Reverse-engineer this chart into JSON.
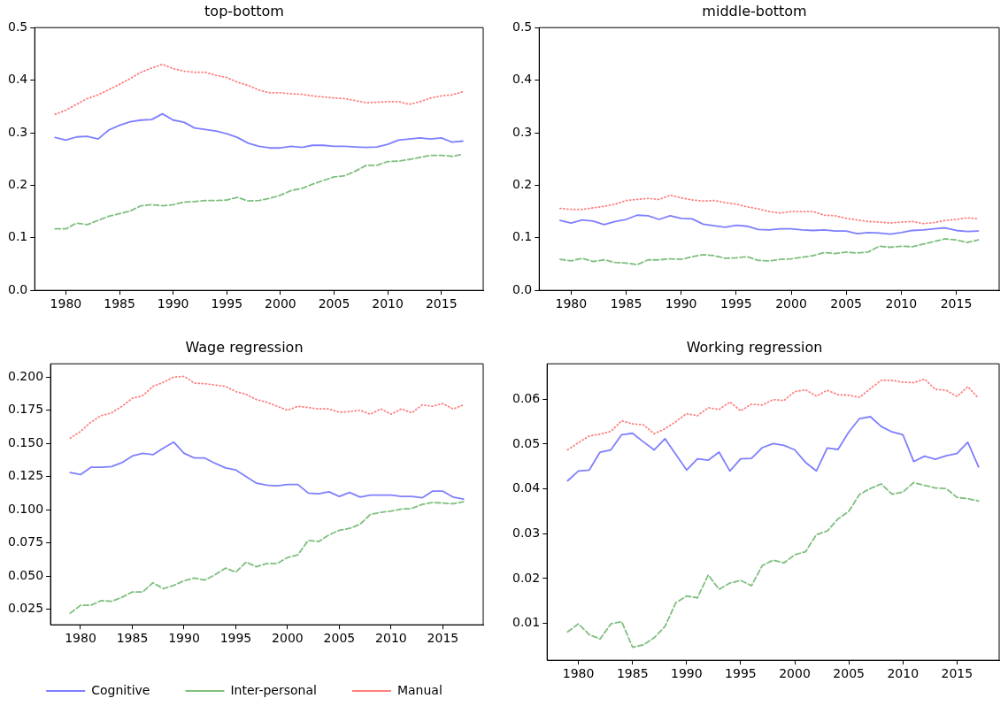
{
  "chart_data": [
    {
      "type": "line",
      "title": "top-bottom",
      "x": [
        1979,
        1980,
        1981,
        1982,
        1983,
        1984,
        1985,
        1986,
        1987,
        1988,
        1989,
        1990,
        1991,
        1992,
        1993,
        1994,
        1995,
        1996,
        1997,
        1998,
        1999,
        2000,
        2001,
        2002,
        2003,
        2004,
        2005,
        2006,
        2007,
        2008,
        2009,
        2010,
        2011,
        2012,
        2013,
        2014,
        2015,
        2016,
        2017
      ],
      "xlim": [
        1977.1,
        2018.9
      ],
      "xticks": [
        1980,
        1985,
        1990,
        1995,
        2000,
        2005,
        2010,
        2015
      ],
      "ylim": [
        0,
        0.5
      ],
      "yticks": [
        {
          "value": 0,
          "label": "0.0"
        },
        0.1,
        0.2,
        0.3,
        0.4,
        0.5
      ],
      "grid": false,
      "legend": false,
      "marker": "none",
      "series": [
        {
          "color": "#7f7fff",
          "line_style": "solid",
          "values": [
            0.291,
            0.286,
            0.292,
            0.293,
            0.288,
            0.305,
            0.314,
            0.321,
            0.324,
            0.325,
            0.336,
            0.324,
            0.32,
            0.309,
            0.306,
            0.303,
            0.298,
            0.291,
            0.28,
            0.274,
            0.271,
            0.271,
            0.274,
            0.272,
            0.276,
            0.276,
            0.274,
            0.274,
            0.273,
            0.272,
            0.273,
            0.278,
            0.286,
            0.288,
            0.29,
            0.288,
            0.29,
            0.282,
            0.284
          ]
        },
        {
          "color": "#7fbf7f",
          "line_style": "dashed",
          "values": [
            0.117,
            0.117,
            0.128,
            0.125,
            0.133,
            0.141,
            0.146,
            0.151,
            0.161,
            0.163,
            0.161,
            0.163,
            0.168,
            0.169,
            0.171,
            0.171,
            0.172,
            0.177,
            0.17,
            0.171,
            0.175,
            0.181,
            0.19,
            0.194,
            0.202,
            0.209,
            0.216,
            0.218,
            0.227,
            0.238,
            0.238,
            0.245,
            0.246,
            0.249,
            0.253,
            0.257,
            0.257,
            0.255,
            0.259
          ]
        },
        {
          "color": "#ff7f7f",
          "line_style": "dotted",
          "values": [
            0.335,
            0.343,
            0.354,
            0.365,
            0.372,
            0.382,
            0.392,
            0.403,
            0.415,
            0.423,
            0.43,
            0.422,
            0.417,
            0.415,
            0.415,
            0.409,
            0.405,
            0.396,
            0.39,
            0.381,
            0.376,
            0.376,
            0.374,
            0.373,
            0.37,
            0.368,
            0.366,
            0.365,
            0.361,
            0.357,
            0.358,
            0.359,
            0.359,
            0.354,
            0.359,
            0.366,
            0.37,
            0.372,
            0.378
          ]
        }
      ]
    },
    {
      "type": "line",
      "title": "middle-bottom",
      "x": [
        1979,
        1980,
        1981,
        1982,
        1983,
        1984,
        1985,
        1986,
        1987,
        1988,
        1989,
        1990,
        1991,
        1992,
        1993,
        1994,
        1995,
        1996,
        1997,
        1998,
        1999,
        2000,
        2001,
        2002,
        2003,
        2004,
        2005,
        2006,
        2007,
        2008,
        2009,
        2010,
        2011,
        2012,
        2013,
        2014,
        2015,
        2016,
        2017
      ],
      "xlim": [
        1977.1,
        2018.9
      ],
      "xticks": [
        1980,
        1985,
        1990,
        1995,
        2000,
        2005,
        2010,
        2015
      ],
      "ylim": [
        0,
        0.5
      ],
      "yticks": [
        {
          "value": 0,
          "label": "0.0"
        },
        0.1,
        0.2,
        0.3,
        0.4,
        0.5
      ],
      "grid": false,
      "legend": false,
      "marker": "none",
      "series": [
        {
          "color": "#7f7fff",
          "line_style": "solid",
          "values": [
            0.133,
            0.128,
            0.134,
            0.132,
            0.125,
            0.131,
            0.135,
            0.143,
            0.142,
            0.135,
            0.142,
            0.137,
            0.136,
            0.126,
            0.123,
            0.12,
            0.124,
            0.122,
            0.116,
            0.115,
            0.117,
            0.117,
            0.115,
            0.114,
            0.115,
            0.113,
            0.113,
            0.108,
            0.11,
            0.109,
            0.107,
            0.11,
            0.114,
            0.115,
            0.117,
            0.119,
            0.114,
            0.112,
            0.113
          ]
        },
        {
          "color": "#7fbf7f",
          "line_style": "dashed",
          "values": [
            0.059,
            0.056,
            0.061,
            0.055,
            0.058,
            0.053,
            0.052,
            0.049,
            0.058,
            0.058,
            0.06,
            0.059,
            0.064,
            0.068,
            0.066,
            0.061,
            0.062,
            0.064,
            0.057,
            0.056,
            0.059,
            0.06,
            0.063,
            0.066,
            0.072,
            0.07,
            0.073,
            0.071,
            0.073,
            0.084,
            0.082,
            0.084,
            0.083,
            0.088,
            0.093,
            0.098,
            0.096,
            0.091,
            0.096
          ]
        },
        {
          "color": "#ff7f7f",
          "line_style": "dotted",
          "values": [
            0.156,
            0.154,
            0.154,
            0.157,
            0.16,
            0.164,
            0.171,
            0.173,
            0.175,
            0.173,
            0.181,
            0.176,
            0.172,
            0.17,
            0.171,
            0.167,
            0.164,
            0.159,
            0.155,
            0.15,
            0.147,
            0.15,
            0.15,
            0.15,
            0.143,
            0.142,
            0.137,
            0.134,
            0.131,
            0.13,
            0.128,
            0.13,
            0.131,
            0.127,
            0.129,
            0.133,
            0.135,
            0.138,
            0.136
          ]
        }
      ]
    },
    {
      "type": "line",
      "title": "Wage regression",
      "x": [
        1979,
        1980,
        1981,
        1982,
        1983,
        1984,
        1985,
        1986,
        1987,
        1988,
        1989,
        1990,
        1991,
        1992,
        1993,
        1994,
        1995,
        1996,
        1997,
        1998,
        1999,
        2000,
        2001,
        2002,
        2003,
        2004,
        2005,
        2006,
        2007,
        2008,
        2009,
        2010,
        2011,
        2012,
        2013,
        2014,
        2015,
        2016,
        2017
      ],
      "xlim": [
        1977.1,
        2018.9
      ],
      "xticks": [
        1980,
        1985,
        1990,
        1995,
        2000,
        2005,
        2010,
        2015
      ],
      "ylim": [
        0.0133,
        0.21
      ],
      "yticks": [
        0.025,
        {
          "value": 0.05,
          "label": "0.050"
        },
        0.075,
        {
          "value": 0.1,
          "label": "0.100"
        },
        0.125,
        {
          "value": 0.15,
          "label": "0.150"
        },
        0.175,
        {
          "value": 0.2,
          "label": "0.200"
        }
      ],
      "grid": false,
      "legend": "bottom",
      "marker": "none",
      "series": [
        {
          "name": "Cognitive",
          "color": "#7f7fff",
          "line_style": "solid",
          "values": [
            0.128,
            0.1265,
            0.132,
            0.132,
            0.1325,
            0.1355,
            0.1405,
            0.1425,
            0.1415,
            0.1465,
            0.151,
            0.1425,
            0.139,
            0.139,
            0.135,
            0.1315,
            0.13,
            0.125,
            0.12,
            0.1185,
            0.118,
            0.119,
            0.119,
            0.1125,
            0.112,
            0.1135,
            0.11,
            0.113,
            0.1095,
            0.111,
            0.111,
            0.111,
            0.11,
            0.11,
            0.109,
            0.114,
            0.114,
            0.1095,
            0.108
          ]
        },
        {
          "name": "Inter-personal",
          "color": "#7fbf7f",
          "line_style": "dashed",
          "values": [
            0.022,
            0.028,
            0.028,
            0.0315,
            0.031,
            0.034,
            0.038,
            0.038,
            0.045,
            0.0405,
            0.043,
            0.0465,
            0.0485,
            0.047,
            0.051,
            0.056,
            0.053,
            0.0605,
            0.057,
            0.0595,
            0.0595,
            0.064,
            0.066,
            0.077,
            0.076,
            0.081,
            0.0845,
            0.086,
            0.089,
            0.0965,
            0.098,
            0.099,
            0.1005,
            0.101,
            0.104,
            0.1055,
            0.105,
            0.1045,
            0.106
          ]
        },
        {
          "name": "Manual",
          "color": "#ff7f7f",
          "line_style": "dotted",
          "values": [
            0.154,
            0.159,
            0.166,
            0.171,
            0.173,
            0.178,
            0.184,
            0.186,
            0.193,
            0.196,
            0.2,
            0.2005,
            0.1955,
            0.195,
            0.194,
            0.193,
            0.189,
            0.187,
            0.183,
            0.181,
            0.178,
            0.175,
            0.178,
            0.177,
            0.176,
            0.176,
            0.1735,
            0.174,
            0.175,
            0.172,
            0.176,
            0.172,
            0.176,
            0.173,
            0.179,
            0.178,
            0.18,
            0.176,
            0.179
          ]
        }
      ]
    },
    {
      "type": "line",
      "title": "Working regression",
      "x": [
        1979,
        1980,
        1981,
        1982,
        1983,
        1984,
        1985,
        1986,
        1987,
        1988,
        1989,
        1990,
        1991,
        1992,
        1993,
        1994,
        1995,
        1996,
        1997,
        1998,
        1999,
        2000,
        2001,
        2002,
        2003,
        2004,
        2005,
        2006,
        2007,
        2008,
        2009,
        2010,
        2011,
        2012,
        2013,
        2014,
        2015,
        2016,
        2017
      ],
      "xlim": [
        1977.1,
        2018.9
      ],
      "xticks": [
        1980,
        1985,
        1990,
        1995,
        2000,
        2005,
        2010,
        2015
      ],
      "ylim": [
        0.0018,
        0.0679
      ],
      "yticks": [
        0.01,
        0.02,
        0.03,
        0.04,
        0.05,
        0.06
      ],
      "grid": false,
      "legend": false,
      "marker": "none",
      "series": [
        {
          "color": "#7f7fff",
          "line_style": "solid",
          "values": [
            0.0418,
            0.044,
            0.0442,
            0.0482,
            0.0487,
            0.0521,
            0.0524,
            0.0505,
            0.0487,
            0.0512,
            0.0477,
            0.0442,
            0.0467,
            0.0464,
            0.0482,
            0.044,
            0.0467,
            0.0468,
            0.0492,
            0.0501,
            0.0497,
            0.0487,
            0.0459,
            0.044,
            0.0491,
            0.0488,
            0.0527,
            0.0557,
            0.0561,
            0.0539,
            0.0527,
            0.0521,
            0.0461,
            0.0473,
            0.0466,
            0.0474,
            0.0479,
            0.0504,
            0.0449
          ]
        },
        {
          "color": "#7fbf7f",
          "line_style": "dashed",
          "values": [
            0.0081,
            0.0099,
            0.0075,
            0.0065,
            0.0099,
            0.0104,
            0.0047,
            0.0052,
            0.0068,
            0.0093,
            0.0146,
            0.0161,
            0.0157,
            0.0208,
            0.0176,
            0.019,
            0.0196,
            0.0184,
            0.0229,
            0.0241,
            0.0235,
            0.0253,
            0.026,
            0.0298,
            0.0306,
            0.0333,
            0.035,
            0.0388,
            0.0401,
            0.0411,
            0.0388,
            0.0393,
            0.0414,
            0.0408,
            0.0402,
            0.0401,
            0.0381,
            0.0378,
            0.0373
          ]
        },
        {
          "color": "#ff7f7f",
          "line_style": "dotted",
          "values": [
            0.0487,
            0.0503,
            0.0518,
            0.0522,
            0.0528,
            0.0552,
            0.0545,
            0.0543,
            0.0523,
            0.0534,
            0.055,
            0.0568,
            0.0563,
            0.0581,
            0.0577,
            0.0594,
            0.0574,
            0.0589,
            0.0587,
            0.0599,
            0.0597,
            0.0617,
            0.0621,
            0.0607,
            0.062,
            0.061,
            0.0609,
            0.0604,
            0.0624,
            0.0642,
            0.0642,
            0.0638,
            0.0637,
            0.0645,
            0.0622,
            0.062,
            0.0606,
            0.0628,
            0.0602
          ]
        }
      ]
    }
  ]
}
